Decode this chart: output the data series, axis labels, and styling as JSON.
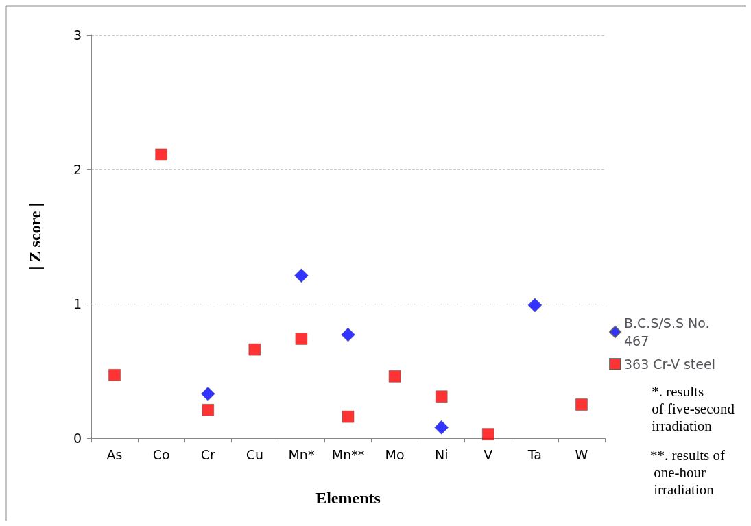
{
  "chart_data": {
    "type": "scatter",
    "xlabel": "Elements",
    "ylabel": "| Z score |",
    "categories": [
      "As",
      "Co",
      "Cr",
      "Cu",
      "Mn*",
      "Mn**",
      "Mo",
      "Ni",
      "V",
      "Ta",
      "W"
    ],
    "series": [
      {
        "name": "B.C.S/S.S No. 467",
        "color": "#0000ff",
        "marker": "diamond",
        "values": [
          null,
          null,
          0.33,
          null,
          1.21,
          0.77,
          null,
          0.08,
          null,
          0.99,
          null
        ]
      },
      {
        "name": "363 Cr-V steel",
        "color": "#ff0000",
        "marker": "square",
        "values": [
          0.47,
          2.11,
          0.21,
          0.66,
          0.74,
          0.16,
          0.46,
          0.31,
          0.03,
          null,
          0.25
        ]
      }
    ],
    "ylim": [
      0,
      3
    ],
    "yticks": [
      0,
      1,
      2,
      3
    ],
    "grid": "y",
    "legend": "right",
    "annotations": [
      "*. results\nof five-second\nirradiation",
      "**. results of\n one-hour\n irradiation"
    ]
  }
}
